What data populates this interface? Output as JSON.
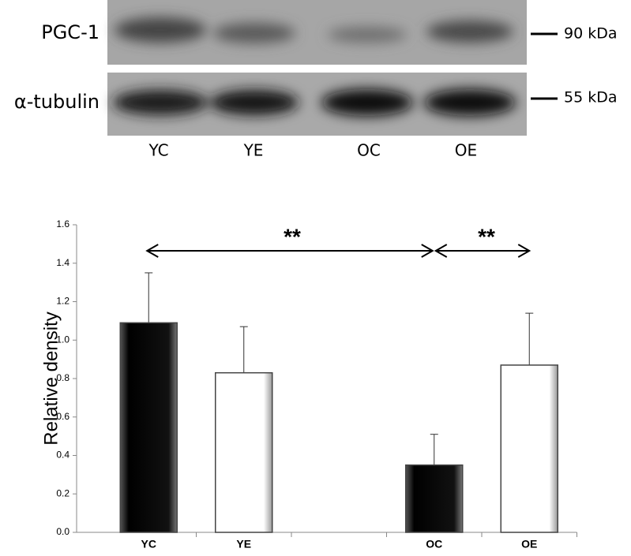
{
  "blot": {
    "rows": [
      {
        "label": "PGC-1",
        "marker": "90 kDa"
      },
      {
        "label": "α-tubulin",
        "marker": "55 kDa"
      }
    ],
    "lanes": [
      "YC",
      "YE",
      "OC",
      "OE"
    ]
  },
  "chart_data": {
    "type": "bar",
    "ylabel": "Relative density",
    "categories": [
      "YC",
      "YE",
      null,
      "OC",
      "OE"
    ],
    "values": [
      1.09,
      0.83,
      null,
      0.35,
      0.87
    ],
    "errors": [
      0.26,
      0.24,
      null,
      0.16,
      0.27
    ],
    "colors": [
      "#000000",
      "#ffffff",
      null,
      "#000000",
      "#ffffff"
    ],
    "ylim": [
      0,
      1.6
    ],
    "yticks": [
      {
        "value": 0,
        "label": "0.0"
      },
      0.2,
      0.4,
      0.6,
      0.8,
      {
        "value": 1,
        "label": "1.0"
      },
      1.2,
      1.4,
      1.6
    ],
    "annotations": [
      "**",
      "**"
    ]
  }
}
